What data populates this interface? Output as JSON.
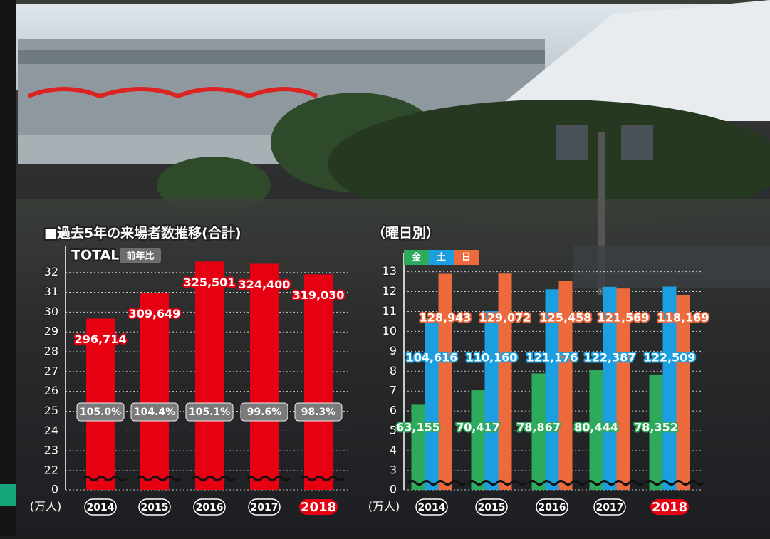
{
  "chart_data": [
    {
      "type": "bar",
      "title": "■過去5年の来場者数推移(合計)",
      "subtitle": "TOTAL",
      "y_unit": "(万人)",
      "categories": [
        "2014",
        "2015",
        "2016",
        "2017",
        "2018"
      ],
      "values": [
        29.6714,
        30.9649,
        32.5501,
        32.44,
        31.903
      ],
      "value_labels": [
        "296,714",
        "309,649",
        "325,501",
        "324,400",
        "319,030"
      ],
      "color": "#e60012",
      "ratio": {
        "name": "前年比",
        "values": [
          105.0,
          104.4,
          105.1,
          99.6,
          98.3
        ],
        "value_labels": [
          "105.0%",
          "104.4%",
          "105.1%",
          "99.6%",
          "98.3%"
        ]
      },
      "ylim": [
        0,
        32.6
      ],
      "yticks": [
        0,
        22,
        23,
        24,
        25,
        26,
        27,
        28,
        29,
        30,
        31,
        32
      ],
      "axis_break": [
        0,
        22
      ],
      "grid": true,
      "highlight_category": 4
    },
    {
      "type": "grouped_bar",
      "title": "（曜日別）",
      "y_unit": "(万人)",
      "categories": [
        "2014",
        "2015",
        "2016",
        "2017",
        "2018"
      ],
      "series": [
        {
          "name": "金",
          "color": "#2eaa5c",
          "values": [
            6.3155,
            7.0417,
            7.8867,
            8.0444,
            7.8352
          ],
          "value_labels": [
            "63,155",
            "70,417",
            "78,867",
            "80,444",
            "78,352"
          ]
        },
        {
          "name": "土",
          "color": "#1b9fe0",
          "values": [
            10.4616,
            11.016,
            12.1176,
            12.2387,
            12.2509
          ],
          "value_labels": [
            "104,616",
            "110,160",
            "121,176",
            "122,387",
            "122,509"
          ]
        },
        {
          "name": "日",
          "color": "#ec6a3c",
          "values": [
            12.8943,
            12.9072,
            12.5458,
            12.1569,
            11.8169
          ],
          "value_labels": [
            "128,943",
            "129,072",
            "125,458",
            "121,569",
            "118,169"
          ]
        }
      ],
      "ylim": [
        0,
        13.2
      ],
      "yticks": [
        0,
        3,
        4,
        5,
        6,
        7,
        8,
        9,
        10,
        11,
        12,
        13
      ],
      "axis_break": [
        0,
        3
      ],
      "grid": true,
      "highlight_category": 4
    }
  ]
}
